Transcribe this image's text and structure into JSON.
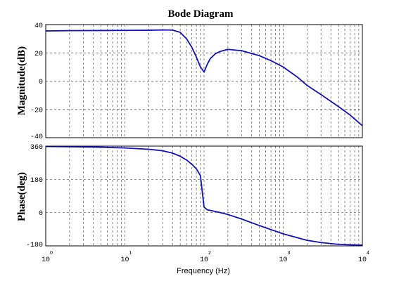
{
  "chart_data": [
    {
      "type": "line",
      "panel": "magnitude",
      "title": "Bode Diagram",
      "xlabel": "Frequency  (Hz)",
      "ylabel": "Magnitude(dB)",
      "xscale": "log",
      "xlim": [
        1,
        10000
      ],
      "ylim": [
        -40,
        40
      ],
      "yticks": [
        "40",
        "20",
        "0",
        "-20",
        "-40"
      ],
      "ytick_values": [
        40,
        20,
        0,
        -20,
        -40
      ],
      "grid": true,
      "color": "#1010c0",
      "series": [
        {
          "x": [
            1,
            2,
            5,
            10,
            20,
            30,
            40,
            50,
            60,
            70,
            80,
            90,
            100,
            110,
            120,
            140,
            160,
            200,
            300,
            500,
            700,
            1000,
            1500,
            2000,
            3000,
            5000,
            7000,
            10000
          ],
          "y": [
            35.5,
            35.7,
            35.8,
            35.9,
            36.0,
            36.2,
            36.1,
            34.5,
            30.0,
            24.0,
            17.0,
            10.0,
            6.5,
            12.0,
            16.0,
            19.5,
            21.0,
            22.5,
            21.5,
            18.0,
            14.5,
            10.0,
            3.0,
            -3.0,
            -9.5,
            -18.0,
            -24.0,
            -31.5
          ]
        }
      ]
    },
    {
      "type": "line",
      "panel": "phase",
      "xlabel": "Frequency  (Hz)",
      "ylabel": "Phase(deg)",
      "xscale": "log",
      "xlim": [
        1,
        10000
      ],
      "ylim": [
        -180,
        360
      ],
      "yticks": [
        "360",
        "180",
        "0",
        "-180"
      ],
      "ytick_values": [
        360,
        180,
        0,
        -180
      ],
      "xtick_base": [
        "10",
        "10",
        "10",
        "10",
        "10"
      ],
      "xtick_exp": [
        "0",
        "1",
        "2",
        "3",
        "4"
      ],
      "xtick_values": [
        1,
        10,
        100,
        1000,
        10000
      ],
      "grid": true,
      "color": "#1010c0",
      "series": [
        {
          "x": [
            1,
            2,
            5,
            10,
            20,
            30,
            40,
            50,
            60,
            70,
            80,
            90,
            100,
            110,
            120,
            150,
            200,
            300,
            500,
            1000,
            2000,
            3000,
            5000,
            7000,
            10000
          ],
          "y": [
            358,
            357,
            354,
            350,
            343,
            335,
            322,
            305,
            285,
            262,
            237,
            200,
            30,
            15,
            12,
            3,
            -10,
            -35,
            -70,
            -115,
            -150,
            -162,
            -172,
            -174,
            -176
          ]
        }
      ]
    }
  ]
}
